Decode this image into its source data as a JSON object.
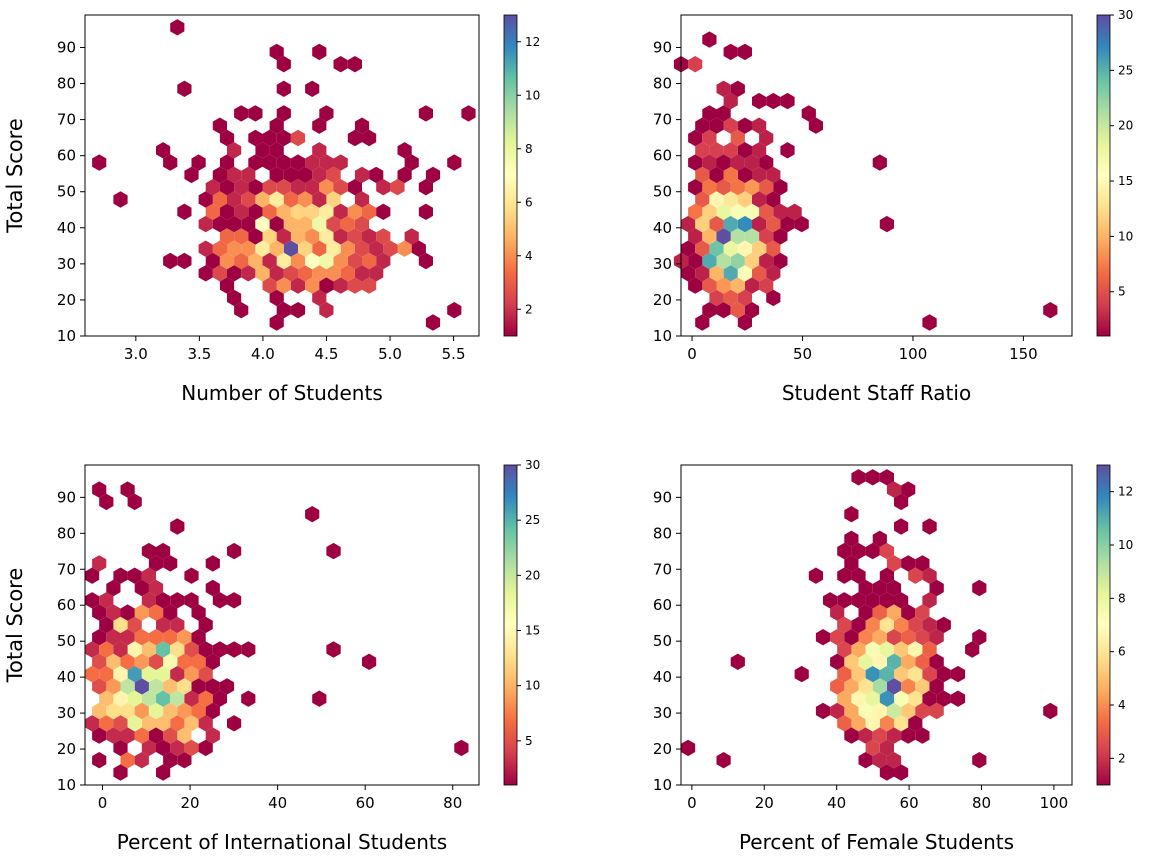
{
  "figure": {
    "colormap": "Spectral",
    "colormap_stops": [
      "#9e0142",
      "#d53e4f",
      "#f46d43",
      "#fdae61",
      "#fee08b",
      "#ffffbf",
      "#e6f598",
      "#abdda4",
      "#66c2a5",
      "#3288bd",
      "#5e4fa2"
    ]
  },
  "chart_data": [
    {
      "type": "hexbin",
      "xlabel": "Number of Students",
      "ylabel": "Total Score",
      "xlim": [
        2.6,
        5.7
      ],
      "ylim": [
        10,
        99
      ],
      "xticks": [
        3.0,
        3.5,
        4.0,
        4.5,
        5.0,
        5.5
      ],
      "xtick_labels": [
        "3.0",
        "3.5",
        "4.0",
        "4.5",
        "5.0",
        "5.5"
      ],
      "yticks": [
        10,
        20,
        30,
        40,
        50,
        60,
        70,
        80,
        90
      ],
      "colorbar": {
        "min": 1,
        "max": 13,
        "ticks": [
          2,
          4,
          6,
          8,
          10,
          12
        ]
      },
      "cluster_center": [
        4.3,
        33
      ],
      "x_spread": 0.5,
      "y_spread": 15,
      "approx_count_range": [
        1,
        13
      ],
      "outliers": [
        [
          2.7,
          57
        ],
        [
          2.9,
          49
        ],
        [
          3.35,
          95
        ],
        [
          5.15,
          35
        ],
        [
          5.35,
          14
        ],
        [
          5.5,
          17
        ]
      ]
    },
    {
      "type": "hexbin",
      "xlabel": "Student Staff Ratio",
      "ylabel": "",
      "xlim": [
        -5,
        172
      ],
      "ylim": [
        10,
        99
      ],
      "xticks": [
        0,
        50,
        100,
        150
      ],
      "xtick_labels": [
        "0",
        "50",
        "100",
        "150"
      ],
      "yticks": [
        10,
        20,
        30,
        40,
        50,
        60,
        70,
        80,
        90
      ],
      "colorbar": {
        "min": 1,
        "max": 30,
        "ticks": [
          5,
          10,
          15,
          20,
          25,
          30
        ]
      },
      "cluster_center": [
        17,
        32
      ],
      "x_spread": 13,
      "y_spread": 15,
      "approx_count_range": [
        1,
        30
      ],
      "outliers": [
        [
          88,
          57
        ],
        [
          88,
          40
        ],
        [
          110,
          14
        ],
        [
          160,
          17
        ],
        [
          43,
          75
        ],
        [
          55,
          69
        ]
      ]
    },
    {
      "type": "hexbin",
      "xlabel": "Percent of International Students",
      "ylabel": "Total Score",
      "xlim": [
        -4,
        86
      ],
      "ylim": [
        10,
        99
      ],
      "xticks": [
        0,
        20,
        40,
        60,
        80
      ],
      "xtick_labels": [
        "0",
        "20",
        "40",
        "60",
        "80"
      ],
      "yticks": [
        10,
        20,
        30,
        40,
        50,
        60,
        70,
        80,
        90
      ],
      "colorbar": {
        "min": 1,
        "max": 30,
        "ticks": [
          5,
          10,
          15,
          20,
          25,
          30
        ]
      },
      "cluster_center": [
        10,
        32
      ],
      "x_spread": 10,
      "y_spread": 15,
      "approx_count_range": [
        1,
        30
      ],
      "outliers": [
        [
          82,
          20
        ],
        [
          62,
          43
        ],
        [
          54,
          75
        ],
        [
          51,
          34
        ],
        [
          52,
          49
        ],
        [
          47,
          87
        ]
      ]
    },
    {
      "type": "hexbin",
      "xlabel": "Percent of Female Students",
      "ylabel": "",
      "xlim": [
        -3,
        105
      ],
      "ylim": [
        10,
        99
      ],
      "xticks": [
        0,
        20,
        40,
        60,
        80,
        100
      ],
      "xtick_labels": [
        "0",
        "20",
        "40",
        "60",
        "80",
        "100"
      ],
      "yticks": [
        10,
        20,
        30,
        40,
        50,
        60,
        70,
        80,
        90
      ],
      "colorbar": {
        "min": 1,
        "max": 13,
        "ticks": [
          2,
          4,
          6,
          8,
          10,
          12
        ]
      },
      "cluster_center": [
        53,
        34
      ],
      "x_spread": 9,
      "y_spread": 15,
      "approx_count_range": [
        1,
        13
      ],
      "outliers": [
        [
          0,
          20
        ],
        [
          100,
          31
        ],
        [
          78,
          17
        ],
        [
          78,
          46
        ],
        [
          10,
          17
        ],
        [
          12,
          43
        ]
      ]
    }
  ]
}
